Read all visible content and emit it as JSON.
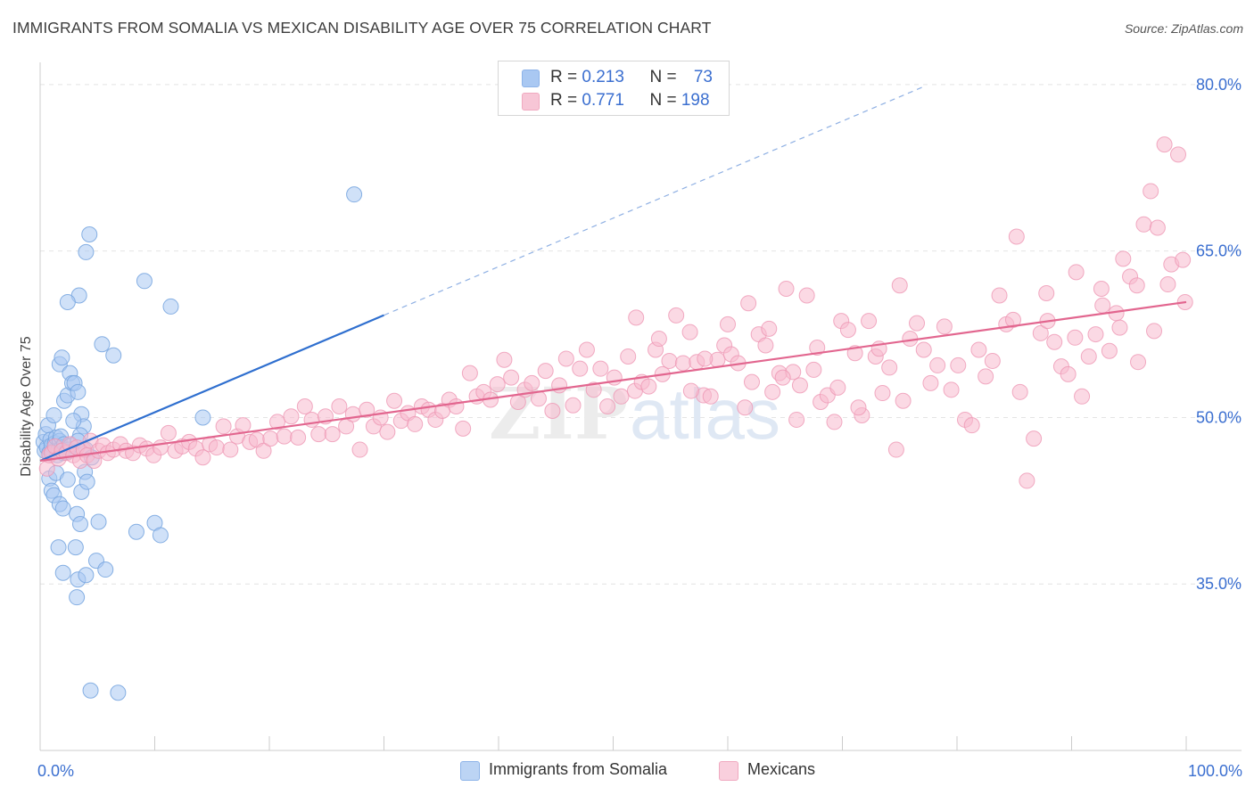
{
  "title": "IMMIGRANTS FROM SOMALIA VS MEXICAN DISABILITY AGE OVER 75 CORRELATION CHART",
  "source": "Source: ZipAtlas.com",
  "watermark": "ZIPatlas",
  "legend": {
    "rows": [
      {
        "r_label": "R = ",
        "r_value": "0.213",
        "n_label": "N = ",
        "n_value": "73",
        "color": "#a9c8f2"
      },
      {
        "r_label": "R = ",
        "r_value": "0.771",
        "n_label": "N = ",
        "n_value": "198",
        "color": "#f7b9cd"
      }
    ]
  },
  "bottom_legend": {
    "somalia": "Immigrants from Somalia",
    "mexicans": "Mexicans"
  },
  "colors": {
    "somalia_fill": "#a9c8f2",
    "somalia_stroke": "#7aa7e0",
    "somalia_line": "#2f6fcf",
    "mexican_fill": "#f7b9cd",
    "mexican_stroke": "#ee97b4",
    "mexican_line": "#e2668f",
    "tick_label": "#3b6fd0",
    "grid": "#e4e4e4"
  },
  "chart_data": {
    "type": "scatter",
    "xlabel": "",
    "ylabel": "Disability Age Over 75",
    "xlim": [
      0,
      100
    ],
    "ylim": [
      20,
      82
    ],
    "x_tick_labels": [
      {
        "value": 0,
        "label": "0.0%"
      },
      {
        "value": 100,
        "label": "100.0%"
      }
    ],
    "y_tick_labels": [
      {
        "value": 35,
        "label": "35.0%"
      },
      {
        "value": 50,
        "label": "50.0%"
      },
      {
        "value": 65,
        "label": "65.0%"
      },
      {
        "value": 80,
        "label": "80.0%"
      }
    ],
    "grid": true,
    "legend_position": "top-center",
    "series": [
      {
        "name": "Immigrants from Somalia",
        "points": [
          [
            0.3,
            47.8
          ],
          [
            0.4,
            47.0
          ],
          [
            0.5,
            48.5
          ],
          [
            0.6,
            47.3
          ],
          [
            0.7,
            49.3
          ],
          [
            0.8,
            46.8
          ],
          [
            0.9,
            48.0
          ],
          [
            1.0,
            47.5
          ],
          [
            1.1,
            46.9
          ],
          [
            1.2,
            50.2
          ],
          [
            1.3,
            47.7
          ],
          [
            1.4,
            48.2
          ],
          [
            1.5,
            46.6
          ],
          [
            1.6,
            47.1
          ],
          [
            1.7,
            47.9
          ],
          [
            1.8,
            48.3
          ],
          [
            1.9,
            47.3
          ],
          [
            2.0,
            46.8
          ],
          [
            2.1,
            47.6
          ],
          [
            2.3,
            46.9
          ],
          [
            2.5,
            47.1
          ],
          [
            2.7,
            47.5
          ],
          [
            0.8,
            44.5
          ],
          [
            1.0,
            43.4
          ],
          [
            1.2,
            43.0
          ],
          [
            1.4,
            45.0
          ],
          [
            1.7,
            42.2
          ],
          [
            2.0,
            41.8
          ],
          [
            2.4,
            44.4
          ],
          [
            3.2,
            41.3
          ],
          [
            3.6,
            43.3
          ],
          [
            3.9,
            45.1
          ],
          [
            1.7,
            54.8
          ],
          [
            1.9,
            55.4
          ],
          [
            2.1,
            51.5
          ],
          [
            2.4,
            52.0
          ],
          [
            2.6,
            54.0
          ],
          [
            2.8,
            53.1
          ],
          [
            3.0,
            53.1
          ],
          [
            3.3,
            52.3
          ],
          [
            3.6,
            50.3
          ],
          [
            3.8,
            49.2
          ],
          [
            2.9,
            49.7
          ],
          [
            3.5,
            48.4
          ],
          [
            3.3,
            47.9
          ],
          [
            4.0,
            47.1
          ],
          [
            4.5,
            46.4
          ],
          [
            4.1,
            44.2
          ],
          [
            5.4,
            56.6
          ],
          [
            6.4,
            55.6
          ],
          [
            4.3,
            66.5
          ],
          [
            4.0,
            64.9
          ],
          [
            3.4,
            61.0
          ],
          [
            2.4,
            60.4
          ],
          [
            9.1,
            62.3
          ],
          [
            11.4,
            60.0
          ],
          [
            27.4,
            70.1
          ],
          [
            14.2,
            50.0
          ],
          [
            1.6,
            38.3
          ],
          [
            3.1,
            38.3
          ],
          [
            4.9,
            37.1
          ],
          [
            5.7,
            36.3
          ],
          [
            2.0,
            36.0
          ],
          [
            3.3,
            35.4
          ],
          [
            4.0,
            35.8
          ],
          [
            3.2,
            33.8
          ],
          [
            8.4,
            39.7
          ],
          [
            10.0,
            40.5
          ],
          [
            10.5,
            39.4
          ],
          [
            5.1,
            40.6
          ],
          [
            3.5,
            40.4
          ],
          [
            4.4,
            25.4
          ],
          [
            6.8,
            25.2
          ]
        ]
      },
      {
        "name": "Mexicans",
        "points": [
          [
            0.6,
            45.4
          ],
          [
            0.8,
            46.6
          ],
          [
            1.0,
            46.8
          ],
          [
            1.3,
            47.4
          ],
          [
            1.6,
            46.3
          ],
          [
            1.9,
            47.0
          ],
          [
            2.3,
            46.8
          ],
          [
            2.6,
            47.6
          ],
          [
            2.9,
            46.6
          ],
          [
            3.2,
            47.3
          ],
          [
            3.5,
            46.1
          ],
          [
            3.8,
            47.1
          ],
          [
            4.1,
            46.6
          ],
          [
            4.4,
            47.9
          ],
          [
            4.7,
            46.1
          ],
          [
            5.1,
            47.0
          ],
          [
            5.5,
            47.5
          ],
          [
            5.9,
            46.8
          ],
          [
            6.4,
            47.1
          ],
          [
            7.0,
            47.6
          ],
          [
            7.5,
            47.0
          ],
          [
            8.1,
            46.8
          ],
          [
            8.7,
            47.5
          ],
          [
            9.3,
            47.2
          ],
          [
            9.9,
            46.6
          ],
          [
            10.5,
            47.3
          ],
          [
            11.2,
            48.6
          ],
          [
            11.8,
            47.0
          ],
          [
            12.4,
            47.4
          ],
          [
            13.0,
            47.8
          ],
          [
            13.6,
            47.2
          ],
          [
            14.2,
            46.4
          ],
          [
            14.8,
            47.6
          ],
          [
            15.4,
            47.3
          ],
          [
            16.0,
            49.2
          ],
          [
            16.6,
            47.1
          ],
          [
            17.2,
            48.3
          ],
          [
            17.7,
            49.3
          ],
          [
            18.3,
            47.8
          ],
          [
            18.9,
            48.0
          ],
          [
            19.5,
            47.0
          ],
          [
            20.1,
            48.1
          ],
          [
            20.7,
            49.6
          ],
          [
            21.3,
            48.3
          ],
          [
            21.9,
            50.1
          ],
          [
            22.5,
            48.2
          ],
          [
            23.1,
            51.0
          ],
          [
            23.7,
            49.8
          ],
          [
            24.3,
            48.5
          ],
          [
            24.9,
            50.1
          ],
          [
            25.5,
            48.5
          ],
          [
            26.1,
            51.0
          ],
          [
            26.7,
            49.2
          ],
          [
            27.3,
            50.3
          ],
          [
            27.9,
            47.1
          ],
          [
            28.5,
            50.7
          ],
          [
            29.1,
            49.2
          ],
          [
            29.7,
            50.0
          ],
          [
            30.3,
            48.7
          ],
          [
            30.9,
            51.5
          ],
          [
            31.5,
            49.7
          ],
          [
            32.1,
            50.4
          ],
          [
            32.7,
            49.4
          ],
          [
            33.3,
            51.0
          ],
          [
            33.9,
            50.7
          ],
          [
            34.5,
            49.8
          ],
          [
            35.1,
            50.6
          ],
          [
            35.7,
            51.6
          ],
          [
            36.3,
            51.0
          ],
          [
            36.9,
            49.0
          ],
          [
            37.5,
            54.0
          ],
          [
            38.1,
            51.9
          ],
          [
            38.7,
            52.3
          ],
          [
            39.3,
            51.6
          ],
          [
            39.9,
            53.0
          ],
          [
            40.5,
            55.2
          ],
          [
            41.1,
            53.6
          ],
          [
            41.7,
            51.4
          ],
          [
            42.3,
            52.5
          ],
          [
            42.9,
            53.1
          ],
          [
            43.5,
            51.7
          ],
          [
            44.1,
            54.2
          ],
          [
            44.7,
            50.6
          ],
          [
            45.3,
            52.9
          ],
          [
            45.9,
            55.3
          ],
          [
            46.5,
            51.1
          ],
          [
            47.1,
            54.4
          ],
          [
            47.7,
            56.1
          ],
          [
            48.3,
            52.5
          ],
          [
            48.9,
            54.4
          ],
          [
            49.5,
            51.0
          ],
          [
            50.1,
            53.6
          ],
          [
            50.7,
            51.9
          ],
          [
            51.3,
            55.5
          ],
          [
            51.9,
            52.4
          ],
          [
            52.5,
            53.2
          ],
          [
            53.1,
            52.8
          ],
          [
            53.7,
            56.1
          ],
          [
            54.3,
            53.9
          ],
          [
            54.9,
            55.1
          ],
          [
            55.5,
            59.2
          ],
          [
            56.1,
            54.9
          ],
          [
            56.7,
            57.7
          ],
          [
            57.3,
            55.0
          ],
          [
            57.9,
            52.0
          ],
          [
            58.5,
            51.9
          ],
          [
            59.1,
            55.2
          ],
          [
            59.7,
            56.5
          ],
          [
            60.3,
            55.7
          ],
          [
            60.9,
            54.9
          ],
          [
            61.5,
            50.9
          ],
          [
            62.1,
            53.2
          ],
          [
            62.7,
            57.5
          ],
          [
            63.3,
            56.5
          ],
          [
            63.9,
            52.3
          ],
          [
            64.5,
            54.0
          ],
          [
            65.1,
            61.6
          ],
          [
            65.7,
            54.1
          ],
          [
            66.3,
            52.9
          ],
          [
            66.9,
            61.0
          ],
          [
            67.5,
            54.3
          ],
          [
            68.1,
            51.4
          ],
          [
            68.7,
            52.0
          ],
          [
            69.3,
            49.6
          ],
          [
            69.9,
            58.7
          ],
          [
            70.5,
            57.9
          ],
          [
            71.1,
            55.8
          ],
          [
            71.7,
            50.2
          ],
          [
            72.3,
            58.7
          ],
          [
            72.9,
            55.5
          ],
          [
            73.5,
            52.2
          ],
          [
            74.1,
            54.5
          ],
          [
            74.7,
            47.1
          ],
          [
            75.3,
            51.5
          ],
          [
            75.9,
            57.1
          ],
          [
            76.5,
            58.5
          ],
          [
            77.1,
            56.1
          ],
          [
            77.7,
            53.1
          ],
          [
            78.3,
            54.7
          ],
          [
            78.9,
            58.2
          ],
          [
            79.5,
            52.5
          ],
          [
            80.1,
            54.7
          ],
          [
            80.7,
            49.8
          ],
          [
            81.3,
            49.3
          ],
          [
            81.9,
            56.1
          ],
          [
            82.5,
            53.7
          ],
          [
            83.1,
            55.1
          ],
          [
            83.7,
            61.0
          ],
          [
            84.3,
            58.4
          ],
          [
            84.9,
            58.8
          ],
          [
            85.5,
            52.3
          ],
          [
            86.1,
            44.3
          ],
          [
            86.7,
            48.1
          ],
          [
            87.3,
            57.6
          ],
          [
            87.9,
            58.7
          ],
          [
            88.5,
            56.8
          ],
          [
            89.1,
            54.6
          ],
          [
            89.7,
            53.9
          ],
          [
            90.3,
            57.2
          ],
          [
            90.9,
            51.9
          ],
          [
            91.5,
            55.5
          ],
          [
            92.1,
            57.5
          ],
          [
            92.7,
            60.1
          ],
          [
            93.3,
            56.0
          ],
          [
            93.9,
            59.4
          ],
          [
            94.5,
            64.3
          ],
          [
            95.1,
            62.7
          ],
          [
            95.7,
            61.9
          ],
          [
            96.3,
            67.4
          ],
          [
            96.9,
            70.4
          ],
          [
            97.5,
            67.1
          ],
          [
            98.1,
            74.6
          ],
          [
            98.7,
            63.8
          ],
          [
            99.3,
            73.7
          ],
          [
            99.7,
            64.2
          ],
          [
            99.9,
            60.4
          ],
          [
            85.2,
            66.3
          ],
          [
            87.8,
            61.2
          ],
          [
            90.4,
            63.1
          ],
          [
            92.6,
            61.6
          ],
          [
            94.2,
            58.1
          ],
          [
            95.8,
            55.0
          ],
          [
            97.2,
            57.8
          ],
          [
            98.4,
            62.0
          ],
          [
            52.0,
            59.0
          ],
          [
            54.0,
            57.1
          ],
          [
            56.8,
            52.4
          ],
          [
            58.0,
            55.3
          ],
          [
            60.0,
            58.4
          ],
          [
            61.8,
            60.3
          ],
          [
            63.6,
            58.0
          ],
          [
            64.8,
            53.6
          ],
          [
            66.0,
            49.8
          ],
          [
            67.8,
            56.3
          ],
          [
            69.6,
            52.7
          ],
          [
            71.4,
            50.9
          ],
          [
            73.2,
            56.2
          ],
          [
            75.0,
            61.9
          ]
        ]
      }
    ],
    "trend_lines": [
      {
        "name": "Immigrants from Somalia",
        "solid_x": [
          0,
          30
        ],
        "dashed_x": [
          30,
          77
        ],
        "y_at_0": 46.1,
        "slope": 0.4373
      },
      {
        "name": "Mexicans",
        "x": [
          0,
          100
        ],
        "y_at_0": 46.1,
        "slope": 0.143
      }
    ]
  }
}
